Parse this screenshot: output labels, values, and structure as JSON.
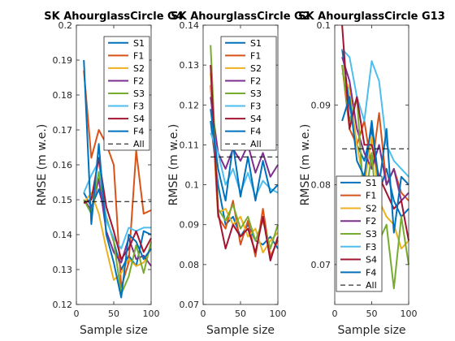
{
  "chart_data": [
    {
      "type": "line",
      "title": "SK AhourglassCircle G4",
      "xlabel": "Sample size",
      "ylabel": "RMSE (m w.e.)",
      "xlim": [
        0,
        100
      ],
      "ylim": [
        0.12,
        0.2
      ],
      "xticks": [
        "0",
        "50",
        "100"
      ],
      "yticks": [
        "0.12",
        "0.13",
        "0.14",
        "0.15",
        "0.16",
        "0.17",
        "0.18",
        "0.19",
        "0.2"
      ],
      "grid": false,
      "legend_position": "top-right",
      "x": [
        10,
        20,
        30,
        40,
        50,
        60,
        70,
        80,
        90,
        100
      ],
      "series": [
        {
          "name": "S1",
          "color": "#0072BD",
          "style": "solid",
          "values": [
            0.152,
            0.148,
            0.153,
            0.145,
            0.138,
            0.13,
            0.134,
            0.131,
            0.141,
            0.14
          ]
        },
        {
          "name": "F1",
          "color": "#D95319",
          "style": "solid",
          "values": [
            0.187,
            0.162,
            0.17,
            0.166,
            0.16,
            0.125,
            0.132,
            0.164,
            0.146,
            0.147
          ]
        },
        {
          "name": "S2",
          "color": "#EDB120",
          "style": "solid",
          "values": [
            0.149,
            0.152,
            0.146,
            0.136,
            0.127,
            0.129,
            0.133,
            0.131,
            0.132,
            0.136
          ]
        },
        {
          "name": "F2",
          "color": "#7E2F8E",
          "style": "solid",
          "values": [
            0.15,
            0.147,
            0.156,
            0.141,
            0.135,
            0.132,
            0.139,
            0.133,
            0.134,
            0.131
          ]
        },
        {
          "name": "S3",
          "color": "#77AC30",
          "style": "solid",
          "values": [
            0.15,
            0.146,
            0.158,
            0.145,
            0.138,
            0.123,
            0.128,
            0.137,
            0.129,
            0.138
          ]
        },
        {
          "name": "F3",
          "color": "#4DBEEE",
          "style": "solid",
          "values": [
            0.152,
            0.157,
            0.161,
            0.144,
            0.139,
            0.136,
            0.142,
            0.141,
            0.142,
            0.142
          ]
        },
        {
          "name": "S4",
          "color": "#A2142F",
          "style": "solid",
          "values": [
            0.149,
            0.15,
            0.162,
            0.148,
            0.141,
            0.133,
            0.136,
            0.141,
            0.135,
            0.139
          ]
        },
        {
          "name": "F4",
          "color": "#0072BD",
          "style": "solid",
          "values": [
            0.19,
            0.143,
            0.166,
            0.14,
            0.132,
            0.122,
            0.14,
            0.138,
            0.133,
            0.136
          ]
        },
        {
          "name": "All",
          "color": "#000000",
          "style": "dashed",
          "values": [
            0.1495,
            0.1495,
            0.1495,
            0.1495,
            0.1495,
            0.1495,
            0.1495,
            0.1495,
            0.1495,
            0.1495
          ]
        }
      ]
    },
    {
      "type": "line",
      "title": "SK AhourglassCircle G2",
      "xlabel": "Sample size",
      "ylabel": "RMSE (m w.e.)",
      "xlim": [
        0,
        100
      ],
      "ylim": [
        0.07,
        0.14
      ],
      "xticks": [
        "0",
        "50",
        "100"
      ],
      "yticks": [
        "0.07",
        "0.08",
        "0.09",
        "0.1",
        "0.11",
        "0.12",
        "0.13",
        "0.14"
      ],
      "grid": false,
      "legend_position": "top-right",
      "x": [
        10,
        20,
        30,
        40,
        50,
        60,
        70,
        80,
        90,
        100
      ],
      "series": [
        {
          "name": "S1",
          "color": "#0072BD",
          "style": "solid",
          "values": [
            0.116,
            0.1,
            0.09,
            0.092,
            0.087,
            0.09,
            0.086,
            0.085,
            0.087,
            0.084
          ]
        },
        {
          "name": "F1",
          "color": "#D95319",
          "style": "solid",
          "values": [
            0.125,
            0.092,
            0.089,
            0.096,
            0.085,
            0.091,
            0.082,
            0.094,
            0.082,
            0.086
          ]
        },
        {
          "name": "S2",
          "color": "#EDB120",
          "style": "solid",
          "values": [
            0.128,
            0.093,
            0.094,
            0.09,
            0.092,
            0.087,
            0.089,
            0.083,
            0.086,
            0.088
          ]
        },
        {
          "name": "F2",
          "color": "#7E2F8E",
          "style": "solid",
          "values": [
            0.122,
            0.108,
            0.104,
            0.109,
            0.106,
            0.11,
            0.103,
            0.108,
            0.102,
            0.105
          ]
        },
        {
          "name": "S3",
          "color": "#77AC30",
          "style": "solid",
          "values": [
            0.135,
            0.094,
            0.091,
            0.095,
            0.089,
            0.092,
            0.086,
            0.091,
            0.084,
            0.09
          ]
        },
        {
          "name": "F3",
          "color": "#4DBEEE",
          "style": "solid",
          "values": [
            0.113,
            0.108,
            0.1,
            0.104,
            0.098,
            0.103,
            0.097,
            0.101,
            0.099,
            0.098
          ]
        },
        {
          "name": "S4",
          "color": "#A2142F",
          "style": "solid",
          "values": [
            0.13,
            0.093,
            0.084,
            0.09,
            0.087,
            0.089,
            0.083,
            0.092,
            0.081,
            0.087
          ]
        },
        {
          "name": "F4",
          "color": "#0072BD",
          "style": "solid",
          "values": [
            0.119,
            0.104,
            0.096,
            0.11,
            0.097,
            0.107,
            0.096,
            0.106,
            0.098,
            0.1
          ]
        },
        {
          "name": "All",
          "color": "#000000",
          "style": "dashed",
          "values": [
            0.107,
            0.107,
            0.107,
            0.107,
            0.107,
            0.107,
            0.107,
            0.107,
            0.107,
            0.107
          ]
        }
      ]
    },
    {
      "type": "line",
      "title": "SK AhourglassCircle G13",
      "xlabel": "Sample size",
      "ylabel": "RMSE (m w.e.)",
      "xlim": [
        0,
        100
      ],
      "ylim": [
        0.065,
        0.1
      ],
      "xticks": [
        "0",
        "50",
        "100"
      ],
      "yticks": [
        "0.07",
        "0.08",
        "0.09",
        "0.1"
      ],
      "grid": false,
      "legend_position": "bottom-left",
      "x": [
        10,
        20,
        30,
        40,
        50,
        60,
        70,
        80,
        90,
        100
      ],
      "series": [
        {
          "name": "S1",
          "color": "#0072BD",
          "style": "solid",
          "values": [
            0.097,
            0.09,
            0.085,
            0.083,
            0.087,
            0.079,
            0.082,
            0.078,
            0.076,
            0.077
          ]
        },
        {
          "name": "F1",
          "color": "#D95319",
          "style": "solid",
          "values": [
            0.095,
            0.087,
            0.085,
            0.088,
            0.082,
            0.089,
            0.08,
            0.082,
            0.079,
            0.078
          ]
        },
        {
          "name": "S2",
          "color": "#EDB120",
          "style": "solid",
          "values": [
            0.094,
            0.092,
            0.085,
            0.08,
            0.086,
            0.078,
            0.076,
            0.075,
            0.072,
            0.073
          ]
        },
        {
          "name": "F2",
          "color": "#7E2F8E",
          "style": "solid",
          "values": [
            0.096,
            0.093,
            0.087,
            0.084,
            0.082,
            0.085,
            0.08,
            0.082,
            0.078,
            0.079
          ]
        },
        {
          "name": "S3",
          "color": "#77AC30",
          "style": "solid",
          "values": [
            0.095,
            0.088,
            0.091,
            0.077,
            0.084,
            0.073,
            0.075,
            0.067,
            0.076,
            0.07
          ]
        },
        {
          "name": "F3",
          "color": "#4DBEEE",
          "style": "solid",
          "values": [
            0.097,
            0.096,
            0.091,
            0.088,
            0.0955,
            0.093,
            0.085,
            0.083,
            0.082,
            0.081
          ]
        },
        {
          "name": "S4",
          "color": "#A2142F",
          "style": "solid",
          "values": [
            0.1,
            0.087,
            0.091,
            0.085,
            0.085,
            0.081,
            0.079,
            0.077,
            0.078,
            0.073
          ]
        },
        {
          "name": "F4",
          "color": "#0072BD",
          "style": "solid",
          "values": [
            0.088,
            0.091,
            0.083,
            0.081,
            0.088,
            0.08,
            0.087,
            0.074,
            0.081,
            0.08
          ]
        },
        {
          "name": "All",
          "color": "#000000",
          "style": "dashed",
          "values": [
            0.0845,
            0.0845,
            0.0845,
            0.0845,
            0.0845,
            0.0845,
            0.0845,
            0.0845,
            0.0845,
            0.0845
          ]
        }
      ]
    }
  ]
}
